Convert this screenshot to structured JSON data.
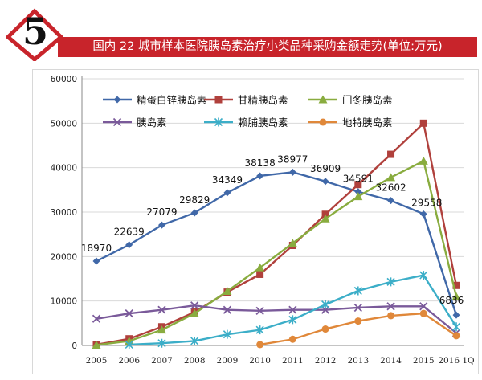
{
  "header": {
    "badge_number": "5",
    "title": "国内 22 城市样本医院胰岛素治疗小类品种采购金额走势(单位:万元)"
  },
  "colors": {
    "title_bg": "#c8242b",
    "accent_red": "#c8242b",
    "axis": "#888888",
    "gridline": "#d9d9d9"
  },
  "chart_data": {
    "type": "line",
    "title": "国内 22 城市样本医院胰岛素治疗小类品种采购金额走势(单位:万元)",
    "xlabel": "",
    "ylabel": "",
    "categories": [
      "2005",
      "2006",
      "2007",
      "2008",
      "2009",
      "2010",
      "2011",
      "2012",
      "2013",
      "2014",
      "2015",
      "2016 1Q"
    ],
    "ylim": [
      0,
      60000
    ],
    "yticks": [
      "0",
      "10000",
      "20000",
      "30000",
      "40000",
      "50000",
      "60000"
    ],
    "legend_position": "top-left",
    "series": [
      {
        "name": "精蛋白锌胰岛素",
        "color": "#4068a8",
        "marker": "diamond",
        "values": [
          18970,
          22639,
          27079,
          29829,
          34349,
          38138,
          38977,
          36909,
          34591,
          32602,
          29558,
          6836
        ],
        "labels": [
          "18970",
          "22639",
          "27079",
          "29829",
          "34349",
          "38138",
          "38977",
          "36909",
          "34591",
          "32602",
          "29558",
          "6836"
        ]
      },
      {
        "name": "甘精胰岛素",
        "color": "#b0403c",
        "marker": "square",
        "values": [
          200,
          1500,
          4200,
          7500,
          12000,
          16000,
          22500,
          29500,
          36200,
          43000,
          50000,
          13500
        ]
      },
      {
        "name": "门冬胰岛素",
        "color": "#89ac3f",
        "marker": "triangle",
        "values": [
          100,
          1000,
          3500,
          7200,
          12200,
          17500,
          23000,
          28500,
          33500,
          37800,
          41500,
          11000
        ]
      },
      {
        "name": "胰岛素",
        "color": "#7a5a9a",
        "marker": "x",
        "values": [
          6000,
          7200,
          8000,
          9000,
          8000,
          7800,
          8000,
          8000,
          8500,
          8800,
          8800,
          2800
        ]
      },
      {
        "name": "赖脯胰岛素",
        "color": "#3caec8",
        "marker": "star",
        "values": [
          null,
          200,
          500,
          1000,
          2500,
          3500,
          5800,
          9200,
          12300,
          14300,
          15800,
          4200
        ]
      },
      {
        "name": "地特胰岛素",
        "color": "#e0883a",
        "marker": "circle",
        "values": [
          null,
          null,
          null,
          null,
          null,
          200,
          1400,
          3700,
          5500,
          6700,
          7200,
          2200
        ]
      }
    ]
  }
}
